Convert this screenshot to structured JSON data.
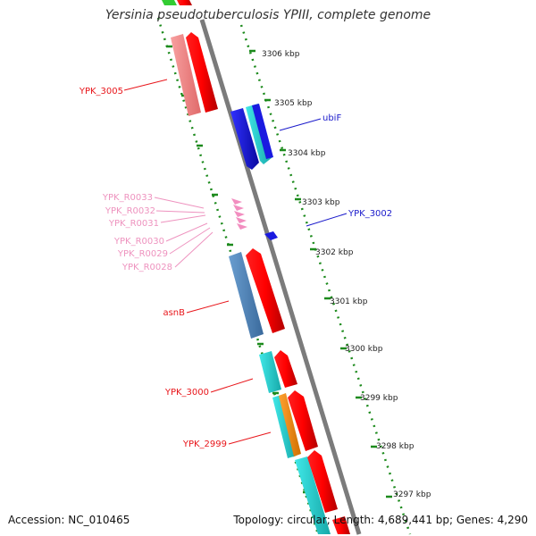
{
  "title": "Yersinia pseudotuberculosis YPIII, complete genome",
  "footer": {
    "accession": "Accession: NC_010465",
    "summary": "Topology: circular; Length: 4,689,441 bp; Genes: 4,290"
  },
  "scale_labels": [
    "3306 kbp",
    "3305 kbp",
    "3304 kbp",
    "3303 kbp",
    "3302 kbp",
    "3301 kbp",
    "3300 kbp",
    "3299 kbp",
    "3298 kbp",
    "3297 kbp"
  ],
  "gene_labels": [
    {
      "text": "YPK_3005",
      "color": "#e8161b"
    },
    {
      "text": "ubiF",
      "color": "#1a1acb"
    },
    {
      "text": "YPK_R0033",
      "color": "#ee93bf"
    },
    {
      "text": "YPK_R0032",
      "color": "#ee93bf"
    },
    {
      "text": "YPK_R0031",
      "color": "#ee93bf"
    },
    {
      "text": "YPK_3002",
      "color": "#1a1acb"
    },
    {
      "text": "YPK_R0030",
      "color": "#ee93bf"
    },
    {
      "text": "YPK_R0029",
      "color": "#ee93bf"
    },
    {
      "text": "YPK_R0028",
      "color": "#ee93bf"
    },
    {
      "text": "asnB",
      "color": "#e8161b"
    },
    {
      "text": "YPK_3000",
      "color": "#e8161b"
    },
    {
      "text": "YPK_2999",
      "color": "#e8161b"
    }
  ],
  "colors": {
    "backbone": "#7b7b7b",
    "tick": "#1c8a1c",
    "forward_gene": "#ff0000",
    "reverse_blue": "#1a1ae0",
    "cyan": "#22d1d1",
    "steel_blue": "#4a7fb5",
    "salmon": "#f08080",
    "orange": "#ff8c00",
    "pink_rna": "#f28ec0",
    "green": "#33cc33"
  }
}
